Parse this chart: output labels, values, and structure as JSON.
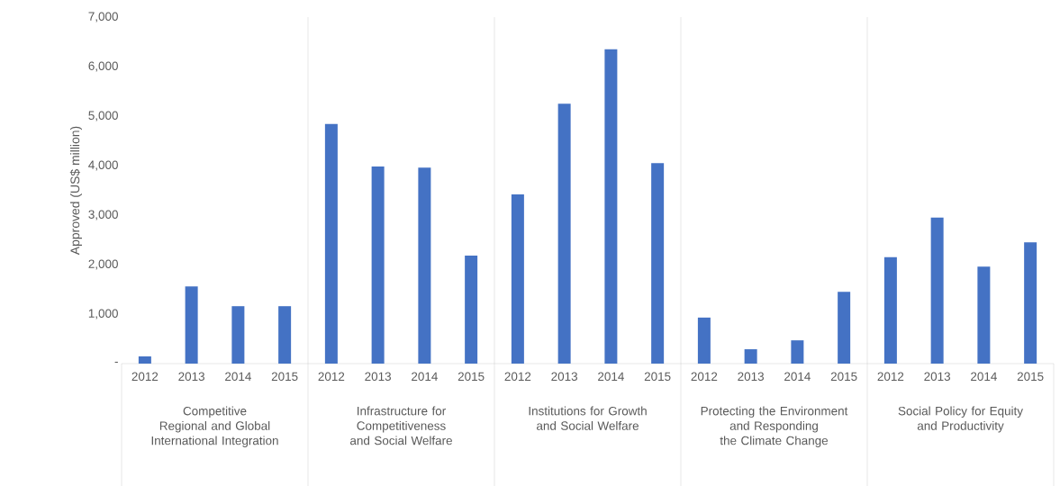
{
  "chart_data": {
    "type": "bar",
    "ylabel": "Approved (US$ million)",
    "categories": [
      "2012",
      "2013",
      "2014",
      "2015",
      "2012",
      "2013",
      "2014",
      "2015",
      "2012",
      "2013",
      "2014",
      "2015",
      "2012",
      "2013",
      "2014",
      "2015",
      "2012",
      "2013",
      "2014",
      "2015"
    ],
    "values": [
      145,
      1560,
      1160,
      1160,
      4840,
      3980,
      3960,
      2180,
      3420,
      5250,
      6350,
      4050,
      930,
      290,
      470,
      1450,
      2150,
      2950,
      1960,
      2450
    ],
    "color": "#4472c4",
    "ylim": [
      0,
      7000
    ],
    "yticks": [
      {
        "value": 0,
        "label": "-"
      },
      {
        "value": 1000,
        "label": "1,000"
      },
      {
        "value": 2000,
        "label": "2,000"
      },
      {
        "value": 3000,
        "label": "3,000"
      },
      {
        "value": 4000,
        "label": "4,000"
      },
      {
        "value": 5000,
        "label": "5,000"
      },
      {
        "value": 6000,
        "label": "6,000"
      },
      {
        "value": 7000,
        "label": "7,000"
      }
    ],
    "annotations": [
      "Competitive Regional and Global International Integration",
      "Infrastructure for Competitiveness and Social Welfare",
      "Institutions for Growth and Social Welfare",
      "Protecting the Environment and Responding the Climate Change",
      "Social Policy for Equity and Productivity"
    ]
  }
}
